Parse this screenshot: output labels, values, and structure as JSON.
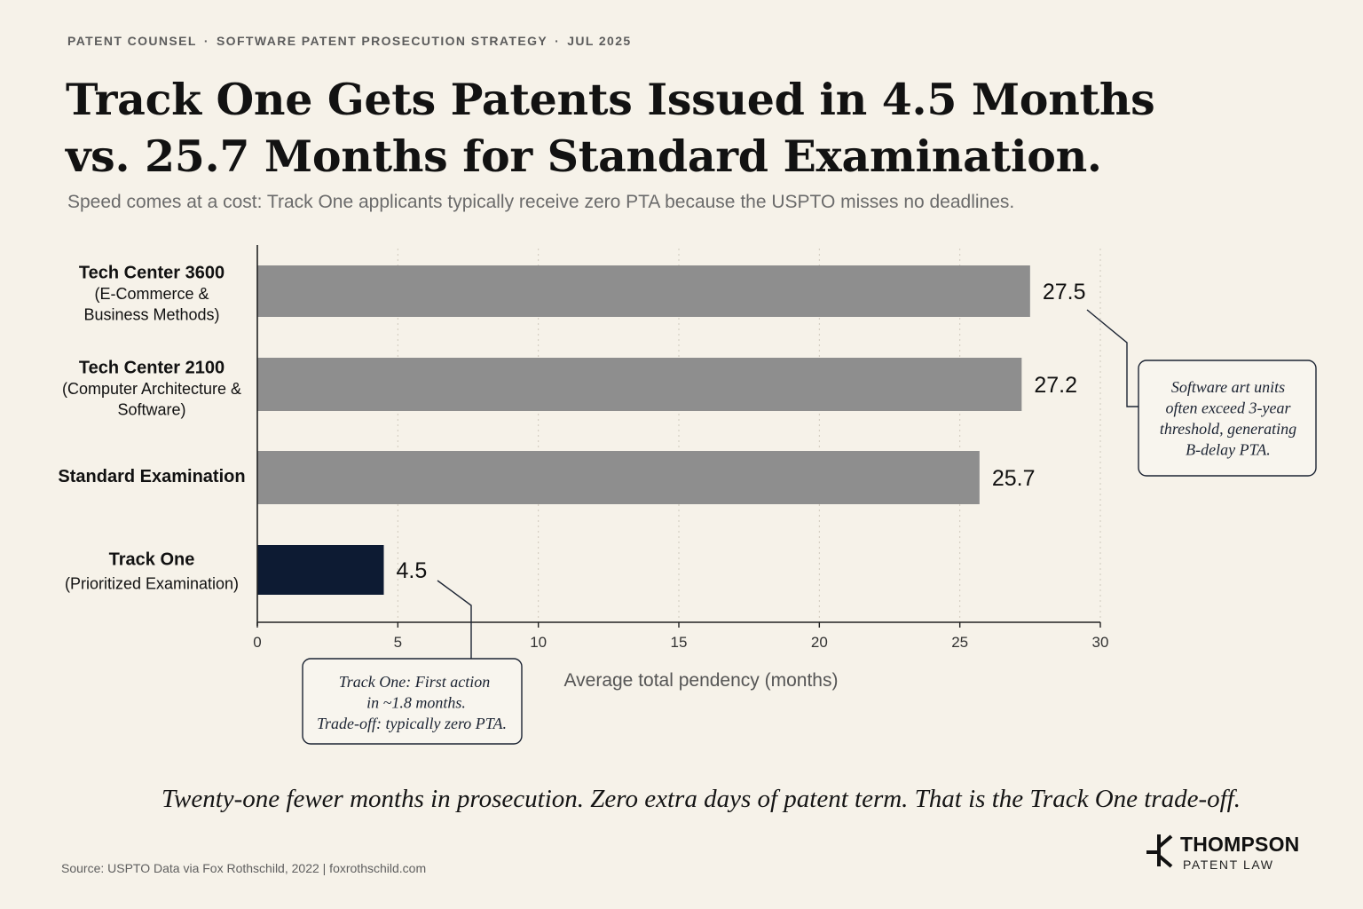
{
  "header": {
    "kicker": {
      "parts": [
        "PATENT COUNSEL",
        "SOFTWARE PATENT PROSECUTION STRATEGY",
        "JUL 2025"
      ],
      "separator": "·"
    },
    "title_lines": [
      "Track One Gets Patents Issued in 4.5 Months",
      "vs. 25.7 Months for Standard Examination."
    ],
    "subtitle": "Speed comes at a cost: Track One applicants typically receive zero PTA because the USPTO misses no deadlines."
  },
  "chart_data": {
    "type": "bar",
    "orientation": "horizontal",
    "categories": [
      {
        "lines": [
          "Tech Center 3600",
          "(E-Commerce &",
          "Business Methods)"
        ]
      },
      {
        "lines": [
          "Tech Center 2100",
          "(Computer Architecture &",
          "Software)"
        ]
      },
      {
        "lines": [
          "Standard Examination"
        ]
      },
      {
        "lines": [
          "Track One",
          "(Prioritized Examination)"
        ]
      }
    ],
    "values": [
      27.5,
      27.2,
      25.7,
      4.5
    ],
    "value_labels": [
      "27.5",
      "27.2",
      "25.7",
      "4.5"
    ],
    "bar_colors": [
      "#8e8e8e",
      "#8e8e8e",
      "#8e8e8e",
      "#0d1b33"
    ],
    "xlabel": "Average total pendency (months)",
    "xlim": [
      0,
      30
    ],
    "xticks": [
      0,
      5,
      10,
      15,
      20,
      25,
      30
    ],
    "grid": "vertical-dotted",
    "annotations": [
      {
        "target_index": 0,
        "lines": [
          "Software art units",
          "often exceed 3-year",
          "threshold, generating",
          "B-delay PTA."
        ]
      },
      {
        "target_index": 3,
        "lines": [
          "Track One: First action",
          "in ~1.8 months.",
          "Trade-off: typically zero PTA."
        ]
      }
    ]
  },
  "footer": {
    "tagline": "Twenty-one fewer months in prosecution. Zero extra days of patent term. That is the Track One trade-off.",
    "source": "Source: USPTO Data via Fox Rothschild, 2022 | foxrothschild.com"
  },
  "logo": {
    "name": "THOMPSON",
    "sub": "PATENT LAW",
    "icon": "patent-mark-icon"
  }
}
